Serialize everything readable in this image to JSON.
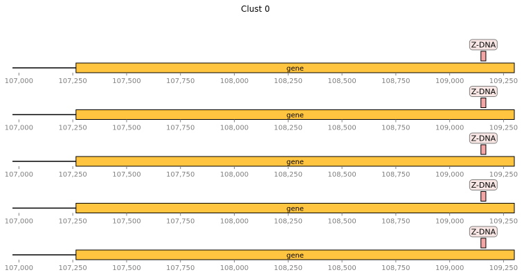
{
  "title": "Clust 0",
  "colors": {
    "gene_fill": "#FFC440",
    "gene_edge": "#000000",
    "feature_fill": "#F4A5A5",
    "label_box_fill": "#F7E6E3",
    "label_box_edge": "#808080",
    "backbone": "#000000",
    "tick_label": "#808080"
  },
  "chart_data": {
    "type": "genome-track",
    "xlim": [
      106970,
      109300
    ],
    "xticks": [
      107000,
      107250,
      107500,
      107750,
      108000,
      108250,
      108500,
      108750,
      109000,
      109250
    ],
    "xtick_labels": [
      "107,000",
      "107,250",
      "107,500",
      "107,750",
      "108,000",
      "108,250",
      "108,500",
      "108,750",
      "109,000",
      "109,250"
    ],
    "tracks": [
      {
        "backbone": [
          106970,
          109300
        ],
        "gene": {
          "label": "gene",
          "start": 107265,
          "end": 109300
        },
        "feature": {
          "label": "Z-DNA",
          "start": 109145,
          "end": 109168
        }
      },
      {
        "backbone": [
          106970,
          109300
        ],
        "gene": {
          "label": "gene",
          "start": 107265,
          "end": 109300
        },
        "feature": {
          "label": "Z-DNA",
          "start": 109145,
          "end": 109168
        }
      },
      {
        "backbone": [
          106970,
          109300
        ],
        "gene": {
          "label": "gene",
          "start": 107265,
          "end": 109300
        },
        "feature": {
          "label": "Z-DNA",
          "start": 109145,
          "end": 109168
        }
      },
      {
        "backbone": [
          106970,
          109300
        ],
        "gene": {
          "label": "gene",
          "start": 107265,
          "end": 109300
        },
        "feature": {
          "label": "Z-DNA",
          "start": 109145,
          "end": 109168
        }
      },
      {
        "backbone": [
          106970,
          109300
        ],
        "gene": {
          "label": "gene",
          "start": 107265,
          "end": 109300
        },
        "feature": {
          "label": "Z-DNA",
          "start": 109145,
          "end": 109168
        }
      }
    ]
  }
}
